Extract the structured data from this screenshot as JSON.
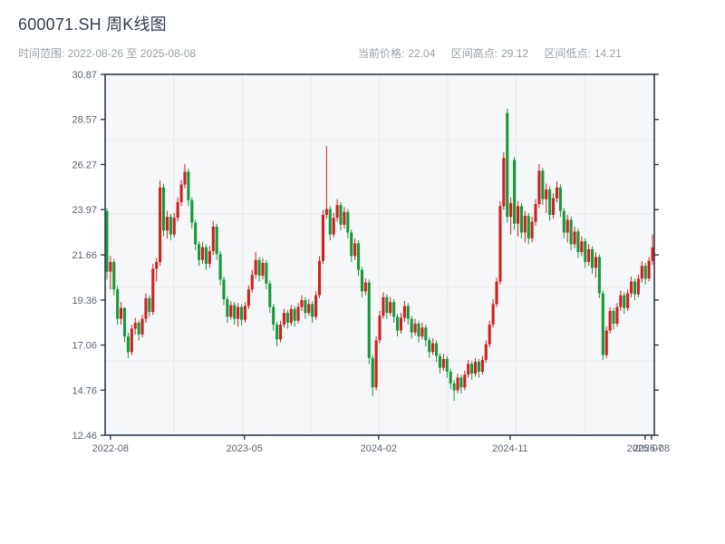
{
  "header": {
    "title": "600071.SH 周K线图",
    "range": "时间范围: 2022-08-26 至 2025-08-08",
    "stats": [
      {
        "label": "当前价格:",
        "value": "22.04"
      },
      {
        "label": "区间高点:",
        "value": "29.12"
      },
      {
        "label": "区间低点:",
        "value": "14.21"
      }
    ]
  },
  "theme": {
    "page_bg": "#ffffff",
    "plot_bg": "#f5f7f9",
    "grid_color": "#e7e9eb",
    "frame_color": "#2d3b4d",
    "title_color": "#323f4e",
    "subtitle_color": "#99a1a8",
    "tick_label_color": "#5a6572",
    "up_color": "#cf2120",
    "down_color": "#17993a"
  },
  "chart_data": {
    "type": "candlestick",
    "title": "600071.SH 周K线图",
    "symbol": "600071.SH",
    "freq": "weekly",
    "start_date": "2022-08-26",
    "end_date": "2025-08-08",
    "current_price": 22.04,
    "range_high": 29.12,
    "range_low": 14.21,
    "grid": "on",
    "y_axis": {
      "min": 12.46,
      "max": 30.87,
      "tick_labels": [
        "30.87",
        "28.57",
        "26.27",
        "23.97",
        "21.66",
        "19.36",
        "17.06",
        "14.76",
        "12.46"
      ],
      "gridline_values": [
        27.5,
        23.75,
        20.0,
        16.25
      ]
    },
    "x_axis": {
      "tick_labels": [
        "2022-08",
        "2023-05",
        "2024-02",
        "2024-11",
        "2025-07",
        "2025-08"
      ],
      "tick_weeks": [
        1.0,
        38.8,
        76.7,
        113.8,
        151.9,
        153.7
      ],
      "gridline_weeks": [
        19.4,
        38.8,
        58.1,
        77.4,
        96.7,
        116.0,
        135.3
      ]
    },
    "candles": [
      [
        23.9,
        24.05,
        20.4,
        20.8
      ],
      [
        20.8,
        21.6,
        19.9,
        21.3
      ],
      [
        21.3,
        21.45,
        19.6,
        19.9
      ],
      [
        19.9,
        20.1,
        18.1,
        18.4
      ],
      [
        18.4,
        19.25,
        18.1,
        18.95
      ],
      [
        18.95,
        19.0,
        17.2,
        17.5
      ],
      [
        17.5,
        17.7,
        16.4,
        16.7
      ],
      [
        16.7,
        18.1,
        16.55,
        17.9
      ],
      [
        17.9,
        18.45,
        17.6,
        18.2
      ],
      [
        18.2,
        18.3,
        17.3,
        17.6
      ],
      [
        17.6,
        18.6,
        17.45,
        18.4
      ],
      [
        18.4,
        19.7,
        18.2,
        19.45
      ],
      [
        19.45,
        19.6,
        18.5,
        18.75
      ],
      [
        18.75,
        21.2,
        18.6,
        20.95
      ],
      [
        20.95,
        21.5,
        20.3,
        21.3
      ],
      [
        21.3,
        25.45,
        21.1,
        25.1
      ],
      [
        25.1,
        25.3,
        22.6,
        22.9
      ],
      [
        22.9,
        23.9,
        22.5,
        23.6
      ],
      [
        23.6,
        23.75,
        22.4,
        22.7
      ],
      [
        22.7,
        23.8,
        22.55,
        23.55
      ],
      [
        23.55,
        24.6,
        23.35,
        24.35
      ],
      [
        24.35,
        25.5,
        24.15,
        25.25
      ],
      [
        25.25,
        26.3,
        25.05,
        25.9
      ],
      [
        25.9,
        26.05,
        24.15,
        24.45
      ],
      [
        24.45,
        24.6,
        23.0,
        23.3
      ],
      [
        23.3,
        23.45,
        21.9,
        22.2
      ],
      [
        22.2,
        22.35,
        21.1,
        21.4
      ],
      [
        21.4,
        22.3,
        21.2,
        22.05
      ],
      [
        22.05,
        22.2,
        20.9,
        21.2
      ],
      [
        21.2,
        22.1,
        21.0,
        21.85
      ],
      [
        21.85,
        23.4,
        21.65,
        23.1
      ],
      [
        23.1,
        23.25,
        21.4,
        21.7
      ],
      [
        21.7,
        21.85,
        20.1,
        20.4
      ],
      [
        20.4,
        20.55,
        19.1,
        19.4
      ],
      [
        19.4,
        19.55,
        18.2,
        18.5
      ],
      [
        18.5,
        19.3,
        18.35,
        19.1
      ],
      [
        19.1,
        19.25,
        18.1,
        18.4
      ],
      [
        18.4,
        19.2,
        18.0,
        19.0
      ],
      [
        19.0,
        19.15,
        18.05,
        18.35
      ],
      [
        18.35,
        19.25,
        18.2,
        19.05
      ],
      [
        19.05,
        20.1,
        18.9,
        19.9
      ],
      [
        19.9,
        20.9,
        19.75,
        20.65
      ],
      [
        20.65,
        21.8,
        20.45,
        21.4
      ],
      [
        21.4,
        21.55,
        20.3,
        20.6
      ],
      [
        20.6,
        21.5,
        20.4,
        21.25
      ],
      [
        21.25,
        21.4,
        19.9,
        20.2
      ],
      [
        20.2,
        20.35,
        18.7,
        19.0
      ],
      [
        19.0,
        19.15,
        17.8,
        18.1
      ],
      [
        18.1,
        18.25,
        17.0,
        17.35
      ],
      [
        17.35,
        18.3,
        17.2,
        18.1
      ],
      [
        18.1,
        18.9,
        17.95,
        18.7
      ],
      [
        18.7,
        18.85,
        17.9,
        18.2
      ],
      [
        18.2,
        19.1,
        18.05,
        18.9
      ],
      [
        18.9,
        19.05,
        18.0,
        18.3
      ],
      [
        18.3,
        19.2,
        18.15,
        19.0
      ],
      [
        19.0,
        19.6,
        18.8,
        19.35
      ],
      [
        19.35,
        19.5,
        18.4,
        18.7
      ],
      [
        18.7,
        19.4,
        18.55,
        19.15
      ],
      [
        19.15,
        19.3,
        18.2,
        18.5
      ],
      [
        18.5,
        19.8,
        18.35,
        19.6
      ],
      [
        19.6,
        21.6,
        19.45,
        21.35
      ],
      [
        21.35,
        23.95,
        21.2,
        23.7
      ],
      [
        23.7,
        27.2,
        23.5,
        24.0
      ],
      [
        24.0,
        24.15,
        22.4,
        22.7
      ],
      [
        22.7,
        23.8,
        22.55,
        23.55
      ],
      [
        23.55,
        24.5,
        23.35,
        24.2
      ],
      [
        24.2,
        24.35,
        22.9,
        23.2
      ],
      [
        23.2,
        24.1,
        23.0,
        23.85
      ],
      [
        23.85,
        24.0,
        22.5,
        22.8
      ],
      [
        22.8,
        22.95,
        21.3,
        21.6
      ],
      [
        21.6,
        22.5,
        21.4,
        22.25
      ],
      [
        22.25,
        22.4,
        20.6,
        20.9
      ],
      [
        20.9,
        21.05,
        19.5,
        19.8
      ],
      [
        19.8,
        20.45,
        19.6,
        20.25
      ],
      [
        20.25,
        20.4,
        16.1,
        16.4
      ],
      [
        16.4,
        16.55,
        14.45,
        14.9
      ],
      [
        14.9,
        17.5,
        14.75,
        17.3
      ],
      [
        17.3,
        18.8,
        17.15,
        18.55
      ],
      [
        18.55,
        19.75,
        18.4,
        19.5
      ],
      [
        19.5,
        19.65,
        18.4,
        18.7
      ],
      [
        18.7,
        19.5,
        18.55,
        19.25
      ],
      [
        19.25,
        19.4,
        18.2,
        18.5
      ],
      [
        18.5,
        18.65,
        17.5,
        17.8
      ],
      [
        17.8,
        18.7,
        17.65,
        18.45
      ],
      [
        18.45,
        19.3,
        18.25,
        19.05
      ],
      [
        19.05,
        19.2,
        18.1,
        18.4
      ],
      [
        18.4,
        18.55,
        17.4,
        17.7
      ],
      [
        17.7,
        18.4,
        17.55,
        18.15
      ],
      [
        18.15,
        18.3,
        17.2,
        17.5
      ],
      [
        17.5,
        18.2,
        17.35,
        17.95
      ],
      [
        17.95,
        18.1,
        17.0,
        17.3
      ],
      [
        17.3,
        17.45,
        16.4,
        16.7
      ],
      [
        16.7,
        17.4,
        16.55,
        17.15
      ],
      [
        17.15,
        17.3,
        16.2,
        16.5
      ],
      [
        16.5,
        16.65,
        15.6,
        15.9
      ],
      [
        15.9,
        16.6,
        15.75,
        16.35
      ],
      [
        16.35,
        16.5,
        15.4,
        15.7
      ],
      [
        15.7,
        15.85,
        14.8,
        15.1
      ],
      [
        15.1,
        15.25,
        14.21,
        14.75
      ],
      [
        14.75,
        15.6,
        14.6,
        15.4
      ],
      [
        15.4,
        15.55,
        14.6,
        14.9
      ],
      [
        14.9,
        15.75,
        14.75,
        15.55
      ],
      [
        15.55,
        16.3,
        15.4,
        16.1
      ],
      [
        16.1,
        16.25,
        15.3,
        15.6
      ],
      [
        15.6,
        16.4,
        15.45,
        16.2
      ],
      [
        16.2,
        16.35,
        15.4,
        15.7
      ],
      [
        15.7,
        16.5,
        15.55,
        16.3
      ],
      [
        16.3,
        17.3,
        16.15,
        17.1
      ],
      [
        17.1,
        18.3,
        16.95,
        18.1
      ],
      [
        18.1,
        19.4,
        17.95,
        19.15
      ],
      [
        19.15,
        20.5,
        19.0,
        20.3
      ],
      [
        20.3,
        24.4,
        20.15,
        24.15
      ],
      [
        24.15,
        26.9,
        23.95,
        26.6
      ],
      [
        28.9,
        29.12,
        23.3,
        23.6
      ],
      [
        23.6,
        24.6,
        22.7,
        24.3
      ],
      [
        26.5,
        26.65,
        22.95,
        23.25
      ],
      [
        23.25,
        24.4,
        22.6,
        24.15
      ],
      [
        24.15,
        24.3,
        22.5,
        22.8
      ],
      [
        22.8,
        23.9,
        22.3,
        23.65
      ],
      [
        23.65,
        23.8,
        22.2,
        22.5
      ],
      [
        22.5,
        23.6,
        22.3,
        23.35
      ],
      [
        23.35,
        24.5,
        23.15,
        24.25
      ],
      [
        24.25,
        26.3,
        24.05,
        25.95
      ],
      [
        25.95,
        26.1,
        24.2,
        24.5
      ],
      [
        24.5,
        25.3,
        23.8,
        25.0
      ],
      [
        25.0,
        25.15,
        23.4,
        23.7
      ],
      [
        23.7,
        24.8,
        23.5,
        24.55
      ],
      [
        24.55,
        25.4,
        24.35,
        25.1
      ],
      [
        25.1,
        25.25,
        23.6,
        23.9
      ],
      [
        23.9,
        24.05,
        22.5,
        22.8
      ],
      [
        22.8,
        23.7,
        22.3,
        23.45
      ],
      [
        23.45,
        23.6,
        21.9,
        22.2
      ],
      [
        22.2,
        23.1,
        22.0,
        22.85
      ],
      [
        22.85,
        23.0,
        21.5,
        21.8
      ],
      [
        21.8,
        22.6,
        21.6,
        22.35
      ],
      [
        22.35,
        22.5,
        21.0,
        21.3
      ],
      [
        21.3,
        22.2,
        21.1,
        21.95
      ],
      [
        21.95,
        22.1,
        20.7,
        21.0
      ],
      [
        21.0,
        21.8,
        20.5,
        21.55
      ],
      [
        21.55,
        21.7,
        19.45,
        19.7
      ],
      [
        19.7,
        19.85,
        16.3,
        16.55
      ],
      [
        16.55,
        18.0,
        16.4,
        17.8
      ],
      [
        17.8,
        19.0,
        17.65,
        18.8
      ],
      [
        18.8,
        18.95,
        17.85,
        18.15
      ],
      [
        18.15,
        19.2,
        18.0,
        19.0
      ],
      [
        19.0,
        19.85,
        18.8,
        19.6
      ],
      [
        19.6,
        19.75,
        18.65,
        18.95
      ],
      [
        18.95,
        19.9,
        18.8,
        19.7
      ],
      [
        19.7,
        20.55,
        19.5,
        20.3
      ],
      [
        20.3,
        20.45,
        19.35,
        19.65
      ],
      [
        19.65,
        20.65,
        19.5,
        20.45
      ],
      [
        20.45,
        21.35,
        20.25,
        21.1
      ],
      [
        21.1,
        21.25,
        20.15,
        20.45
      ],
      [
        20.45,
        21.55,
        20.3,
        21.35
      ],
      [
        21.35,
        22.7,
        21.15,
        22.04
      ]
    ]
  }
}
